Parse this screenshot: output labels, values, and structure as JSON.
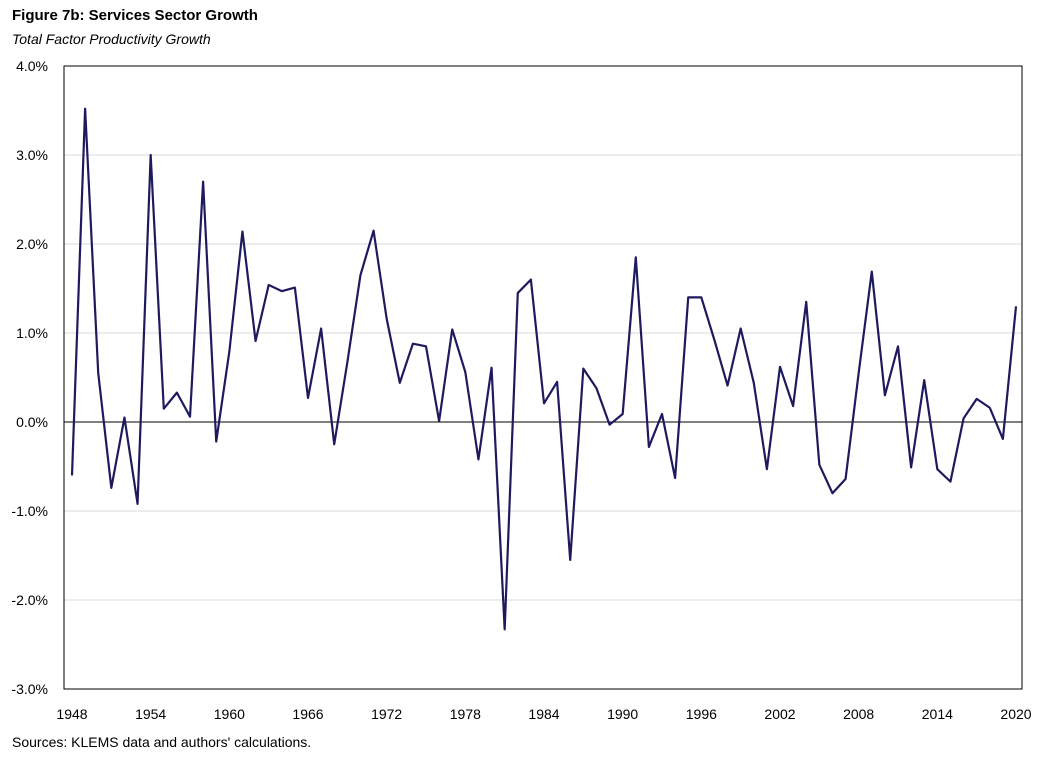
{
  "header": {
    "title": "Figure 7b: Services Sector Growth",
    "subtitle": "Total Factor Productivity Growth"
  },
  "footer": {
    "source": "Sources: KLEMS data and authors' calculations."
  },
  "chart_data": {
    "type": "line",
    "title": "Figure 7b: Services Sector Growth",
    "subtitle": "Total Factor Productivity Growth",
    "xlabel": "",
    "ylabel": "",
    "ylim": [
      -3.0,
      4.0
    ],
    "xlim": [
      1948,
      2020
    ],
    "grid": true,
    "line_color": "#1f1a5e",
    "x_ticks": [
      "1948",
      "1954",
      "1960",
      "1966",
      "1972",
      "1978",
      "1984",
      "1990",
      "1996",
      "2002",
      "2008",
      "2014",
      "2020"
    ],
    "y_ticks": [
      "4.0%",
      "3.0%",
      "2.0%",
      "1.0%",
      "0.0%",
      "-1.0%",
      "-2.0%",
      "-3.0%"
    ],
    "x": [
      1948,
      1949,
      1950,
      1951,
      1952,
      1953,
      1954,
      1955,
      1956,
      1957,
      1958,
      1959,
      1960,
      1961,
      1962,
      1963,
      1964,
      1965,
      1966,
      1967,
      1968,
      1969,
      1970,
      1971,
      1972,
      1973,
      1974,
      1975,
      1976,
      1977,
      1978,
      1979,
      1980,
      1981,
      1982,
      1983,
      1984,
      1985,
      1986,
      1987,
      1988,
      1989,
      1990,
      1991,
      1992,
      1993,
      1994,
      1995,
      1996,
      1997,
      1998,
      1999,
      2000,
      2001,
      2002,
      2003,
      2004,
      2005,
      2006,
      2007,
      2008,
      2009,
      2010,
      2011,
      2012,
      2013,
      2014,
      2015,
      2016,
      2017,
      2018,
      2019,
      2020
    ],
    "series": [
      {
        "values": [
          -0.6,
          3.52,
          0.55,
          -0.74,
          0.05,
          -0.92,
          3.0,
          0.15,
          0.33,
          0.06,
          2.7,
          -0.22,
          0.79,
          2.14,
          0.91,
          1.54,
          1.47,
          1.51,
          0.27,
          1.05,
          -0.25,
          0.67,
          1.65,
          2.15,
          1.16,
          0.44,
          0.88,
          0.85,
          0.01,
          1.04,
          0.56,
          -0.42,
          0.61,
          -2.33,
          1.45,
          1.6,
          0.21,
          0.45,
          -1.55,
          0.6,
          0.38,
          -0.03,
          0.09,
          1.85,
          -0.28,
          0.09,
          -0.63,
          1.4,
          1.4,
          0.92,
          0.41,
          1.05,
          0.44,
          -0.53,
          0.62,
          0.18,
          1.35,
          -0.48,
          -0.8,
          -0.64,
          0.55,
          1.69,
          0.3,
          0.85,
          -0.51,
          0.47,
          -0.53,
          -0.67,
          0.04,
          0.26,
          0.16,
          -0.19,
          1.3
        ]
      }
    ]
  }
}
